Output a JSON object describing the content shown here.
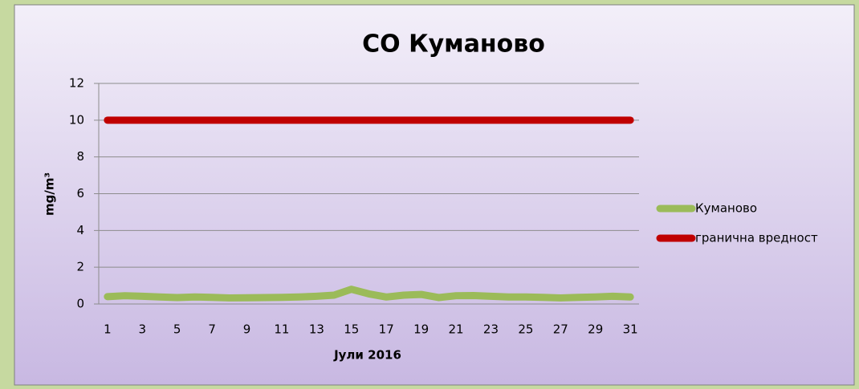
{
  "chart_data": {
    "type": "line",
    "title": "CO Куманово",
    "x_label": "Јули 2016",
    "y_label": "mg/m³",
    "categories": [
      1,
      null,
      3,
      null,
      5,
      null,
      7,
      null,
      9,
      null,
      11,
      null,
      13,
      null,
      15,
      null,
      17,
      null,
      19,
      null,
      21,
      null,
      23,
      null,
      25,
      null,
      27,
      null,
      29,
      null,
      31
    ],
    "series": [
      {
        "name": "Куманово",
        "color": "#9bbb59",
        "values": [
          0.4,
          0.45,
          0.42,
          0.38,
          0.35,
          0.38,
          0.36,
          0.33,
          0.34,
          0.35,
          0.36,
          0.38,
          0.42,
          0.48,
          0.8,
          0.55,
          0.38,
          0.48,
          0.52,
          0.35,
          0.45,
          0.46,
          0.42,
          0.38,
          0.38,
          0.36,
          0.33,
          0.36,
          0.38,
          0.42,
          0.38
        ]
      },
      {
        "name": "гранична вредност",
        "color": "#c00000",
        "values": [
          10,
          10,
          10,
          10,
          10,
          10,
          10,
          10,
          10,
          10,
          10,
          10,
          10,
          10,
          10,
          10,
          10,
          10,
          10,
          10,
          10,
          10,
          10,
          10,
          10,
          10,
          10,
          10,
          10,
          10,
          10
        ]
      }
    ],
    "ylim": [
      0,
      12
    ],
    "yticks": [
      0,
      2,
      4,
      6,
      8,
      10,
      12
    ],
    "grid": true,
    "legend": "right"
  }
}
